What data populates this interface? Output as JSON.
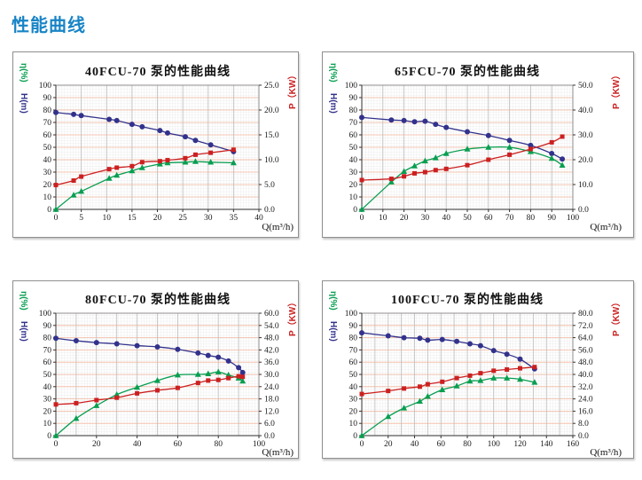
{
  "page": {
    "header": "性能曲线"
  },
  "colors": {
    "header_blue": "#1884c6",
    "h_curve": "#32328c",
    "eta_curve": "#089e50",
    "p_curve": "#cc2020",
    "grid_minor": "#dcdcdc",
    "grid_major_h": "#f3b79e",
    "grid_major_v": "#bdbdbd",
    "axis": "#333333",
    "panel_border": "#8f8f8f"
  },
  "chart_data": [
    {
      "type": "line",
      "title": "40FCU-70 泵的性能曲线",
      "x_axis": {
        "label": "Q(m³/h)",
        "min": 0,
        "max": 40,
        "major_step": 5,
        "tick_labels": [
          "0",
          "5",
          "10",
          "15",
          "20",
          "25",
          "30",
          "35",
          "40"
        ]
      },
      "left_axis": {
        "labels": [
          "η(%)",
          "H(m)"
        ],
        "min": 0,
        "max": 100,
        "major_step": 10,
        "tick_labels": [
          "0",
          "10",
          "20",
          "30",
          "40",
          "50",
          "60",
          "70",
          "80",
          "90",
          "100"
        ]
      },
      "right_axis": {
        "label": "P（KW）",
        "min": 0,
        "max": 25,
        "tick_labels": [
          "0.0",
          "5.0",
          "10.0",
          "15.0",
          "20.0",
          "25.0"
        ]
      },
      "x": [
        0,
        3.5,
        5,
        10.5,
        12,
        15,
        17,
        20.5,
        22,
        25.5,
        27.5,
        30.5,
        35
      ],
      "series": [
        {
          "name": "H(m)",
          "axis": "left",
          "marker": "circle",
          "color": "#32328c",
          "values": [
            78,
            76.5,
            75.5,
            72.5,
            71.5,
            68.5,
            66.5,
            63.5,
            61.5,
            58.5,
            55.5,
            52,
            46.5
          ]
        },
        {
          "name": "η(%)",
          "axis": "left",
          "marker": "triangle",
          "color": "#089e50",
          "values": [
            0,
            11.5,
            14.5,
            25,
            27.5,
            31,
            33.5,
            36.5,
            37.5,
            38,
            38.5,
            38,
            37.5
          ]
        },
        {
          "name": "P（KW）",
          "axis": "right",
          "marker": "square",
          "color": "#cc2020",
          "values": [
            4.9,
            5.8,
            6.6,
            8.1,
            8.4,
            8.7,
            9.5,
            9.7,
            9.9,
            10.3,
            11.0,
            11.4,
            12.0
          ]
        }
      ]
    },
    {
      "type": "line",
      "title": "65FCU-70 泵的性能曲线",
      "x_axis": {
        "label": "Q(m³/h)",
        "min": 0,
        "max": 100,
        "major_step": 10,
        "tick_labels": [
          "0",
          "10",
          "20",
          "30",
          "40",
          "50",
          "60",
          "70",
          "80",
          "90",
          "100"
        ]
      },
      "left_axis": {
        "labels": [
          "η(%)",
          "H(m)"
        ],
        "min": 0,
        "max": 100,
        "major_step": 10,
        "tick_labels": [
          "0",
          "10",
          "20",
          "30",
          "40",
          "50",
          "60",
          "70",
          "80",
          "90",
          "100"
        ]
      },
      "right_axis": {
        "label": "P（KW）",
        "min": 0,
        "max": 50,
        "tick_labels": [
          "0.0",
          "10.0",
          "20.0",
          "30.0",
          "40.0",
          "50.0"
        ]
      },
      "x": [
        0,
        14,
        20,
        25,
        30,
        35,
        40,
        50,
        60,
        70,
        80,
        90,
        95
      ],
      "series": [
        {
          "name": "H(m)",
          "axis": "left",
          "marker": "circle",
          "color": "#32328c",
          "values": [
            74,
            72,
            71.5,
            70.5,
            71,
            68.5,
            66,
            62.5,
            59.5,
            55.5,
            51.5,
            45,
            40.5
          ]
        },
        {
          "name": "η(%)",
          "axis": "left",
          "marker": "triangle",
          "color": "#089e50",
          "values": [
            0,
            22,
            30.5,
            35,
            39,
            41.5,
            45,
            48.5,
            50,
            50,
            46.5,
            41,
            35.5
          ]
        },
        {
          "name": "P（KW）",
          "axis": "right",
          "marker": "square",
          "color": "#cc2020",
          "values": [
            11.8,
            12.3,
            13.3,
            14.5,
            15.0,
            15.8,
            16.3,
            17.8,
            20.0,
            22.0,
            24.3,
            27.0,
            29.3
          ]
        }
      ]
    },
    {
      "type": "line",
      "title": "80FCU-70 泵的性能曲线",
      "x_axis": {
        "label": "Q(m³/h)",
        "min": 0,
        "max": 100,
        "major_step": 10,
        "tick_labels": [
          "0",
          "20",
          "40",
          "60",
          "80",
          "100"
        ]
      },
      "left_axis": {
        "labels": [
          "η(%)",
          "H(m)"
        ],
        "min": 0,
        "max": 100,
        "major_step": 10,
        "tick_labels": [
          "0",
          "10",
          "20",
          "30",
          "40",
          "50",
          "60",
          "70",
          "80",
          "90",
          "100"
        ]
      },
      "right_axis": {
        "label": "P（KW）",
        "min": 0,
        "max": 60,
        "tick_labels": [
          "0.0",
          "6.0",
          "12.0",
          "18.0",
          "24.0",
          "30.0",
          "36.0",
          "42.0",
          "48.0",
          "54.0",
          "60.0"
        ]
      },
      "x": [
        0,
        10,
        20,
        30,
        40,
        50,
        60,
        70,
        75,
        80,
        85,
        90,
        92
      ],
      "series": [
        {
          "name": "H(m)",
          "axis": "left",
          "marker": "circle",
          "color": "#32328c",
          "values": [
            79.5,
            77.5,
            76,
            75,
            73.5,
            72.5,
            70.5,
            67.5,
            65.5,
            64,
            61,
            55.5,
            51.5
          ]
        },
        {
          "name": "η(%)",
          "axis": "left",
          "marker": "triangle",
          "color": "#089e50",
          "values": [
            0,
            14,
            24.5,
            33.5,
            39.5,
            45,
            49.5,
            50,
            50.5,
            52,
            49.5,
            47,
            44.5
          ]
        },
        {
          "name": "P（KW）",
          "axis": "right",
          "marker": "square",
          "color": "#cc2020",
          "values": [
            15.3,
            15.9,
            17.4,
            18.6,
            20.7,
            22.2,
            23.4,
            25.8,
            27.0,
            27.3,
            28.2,
            29.1,
            28.8
          ]
        }
      ]
    },
    {
      "type": "line",
      "title": "100FCU-70 泵的性能曲线",
      "x_axis": {
        "label": "Q(m³/h)",
        "min": 0,
        "max": 160,
        "major_step": 10,
        "tick_labels": [
          "0",
          "20",
          "40",
          "60",
          "80",
          "100",
          "120",
          "140",
          "160"
        ]
      },
      "left_axis": {
        "labels": [
          "η(%)",
          "H(m)"
        ],
        "min": 0,
        "max": 100,
        "major_step": 10,
        "tick_labels": [
          "0",
          "10",
          "20",
          "30",
          "40",
          "50",
          "60",
          "70",
          "80",
          "90",
          "100"
        ]
      },
      "right_axis": {
        "label": "P（KW）",
        "min": 0,
        "max": 80,
        "tick_labels": [
          "0.0",
          "8.0",
          "16.0",
          "24.0",
          "32.0",
          "40.0",
          "48.0",
          "56.0",
          "64.0",
          "72.0",
          "80.0"
        ]
      },
      "x": [
        0,
        20,
        32,
        44,
        50,
        61,
        72,
        82,
        90,
        100,
        110,
        120,
        131
      ],
      "series": [
        {
          "name": "H(m)",
          "axis": "left",
          "marker": "circle",
          "color": "#32328c",
          "values": [
            84,
            81.5,
            80,
            79.5,
            78,
            78.5,
            77,
            75,
            73.5,
            69.5,
            66.5,
            62.5,
            54.5
          ]
        },
        {
          "name": "η(%)",
          "axis": "left",
          "marker": "triangle",
          "color": "#089e50",
          "values": [
            0,
            15.5,
            22.5,
            28,
            32,
            37.5,
            40.5,
            44.5,
            45,
            47,
            47,
            46,
            43.5
          ]
        },
        {
          "name": "P（KW）",
          "axis": "right",
          "marker": "square",
          "color": "#cc2020",
          "values": [
            27.2,
            29.2,
            30.8,
            32.0,
            33.6,
            35.2,
            37.6,
            39.2,
            40.8,
            42.4,
            43.2,
            44.0,
            44.8
          ]
        }
      ]
    }
  ]
}
